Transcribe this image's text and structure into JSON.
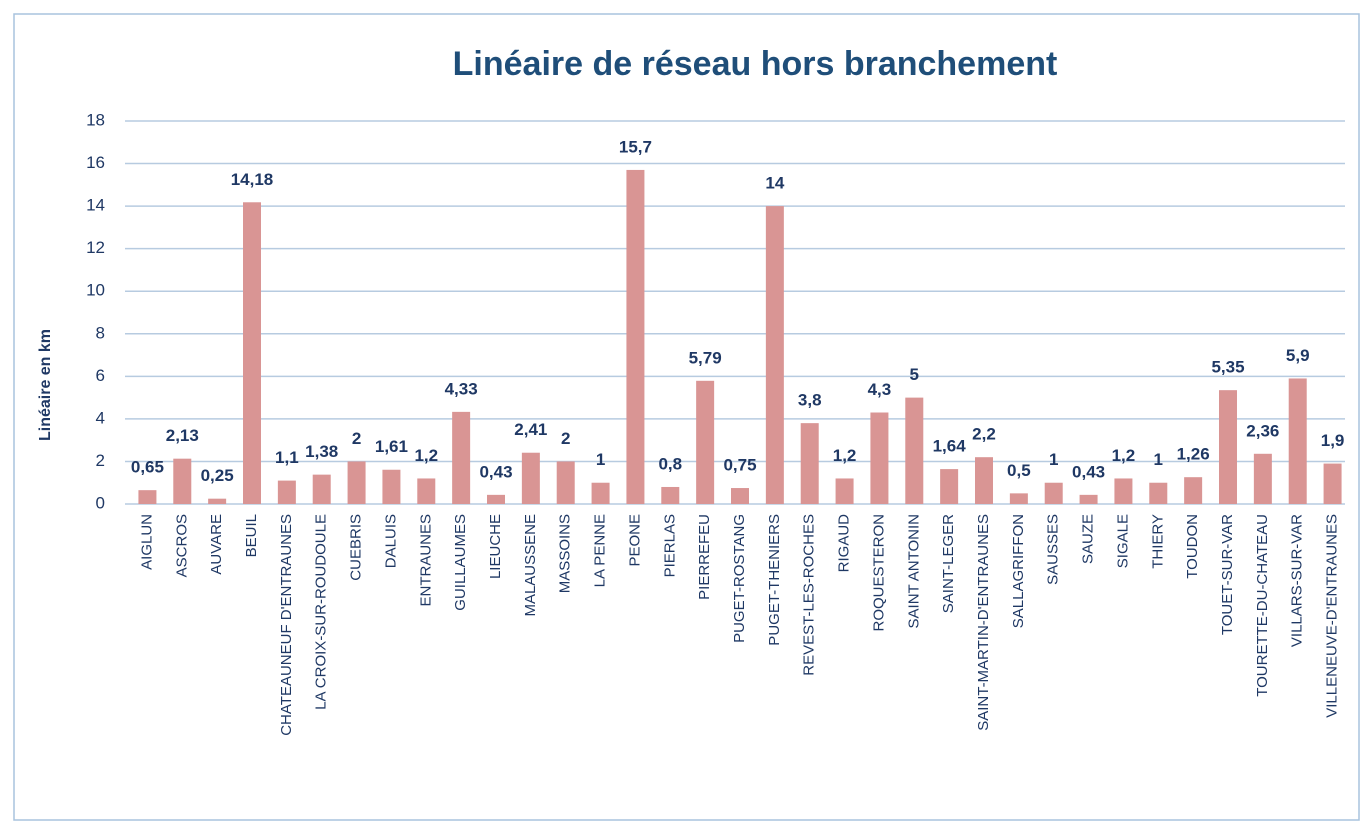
{
  "chart_data": {
    "type": "bar",
    "title": "Linéaire de réseau hors branchement",
    "y_label": "Linéaire en km",
    "categories": [
      "AIGLUN",
      "ASCROS",
      "AUVARE",
      "BEUIL",
      "CHATEAUNEUF D'ENTRAUNES",
      "LA CROIX-SUR-ROUDOULE",
      "CUEBRIS",
      "DALUIS",
      "ENTRAUNES",
      "GUILLAUMES",
      "LIEUCHE",
      "MALAUSSENE",
      "MASSOINS",
      "LA PENNE",
      "PEONE",
      "PIERLAS",
      "PIERREFEU",
      "PUGET-ROSTANG",
      "PUGET-THENIERS",
      "REVEST-LES-ROCHES",
      "RIGAUD",
      "ROQUESTERON",
      "SAINT ANTONIN",
      "SAINT-LEGER",
      "SAINT-MARTIN-D'ENTRAUNES",
      "SALLAGRIFFON",
      "SAUSSES",
      "SAUZE",
      "SIGALE",
      "THIERY",
      "TOUDON",
      "TOUET-SUR-VAR",
      "TOURETTE-DU-CHATEAU",
      "VILLARS-SUR-VAR",
      "VILLENEUVE-D'ENTRAUNES"
    ],
    "values": [
      0.65,
      2.13,
      0.25,
      14.18,
      1.1,
      1.38,
      2,
      1.61,
      1.2,
      4.33,
      0.43,
      2.41,
      2,
      1,
      15.7,
      0.8,
      5.79,
      0.75,
      14,
      3.8,
      1.2,
      4.3,
      5,
      1.64,
      2.2,
      0.5,
      1,
      0.43,
      1.2,
      1,
      1.26,
      5.35,
      2.36,
      5.9,
      1.9
    ],
    "value_labels": [
      "0,65",
      "2,13",
      "0,25",
      "14,18",
      "1,1",
      "1,38",
      "2",
      "1,61",
      "1,2",
      "4,33",
      "0,43",
      "2,41",
      "2",
      "1",
      "15,7",
      "0,8",
      "5,79",
      "0,75",
      "14",
      "3,8",
      "1,2",
      "4,3",
      "5",
      "1,64",
      "2,2",
      "0,5",
      "1",
      "0,43",
      "1,2",
      "1",
      "1,26",
      "5,35",
      "2,36",
      "5,9",
      "1,9"
    ],
    "color": "#d99594",
    "ylim": [
      0,
      18
    ],
    "yticks": [
      0,
      2,
      4,
      6,
      8,
      10,
      12,
      14,
      16,
      18
    ],
    "grid": true
  }
}
